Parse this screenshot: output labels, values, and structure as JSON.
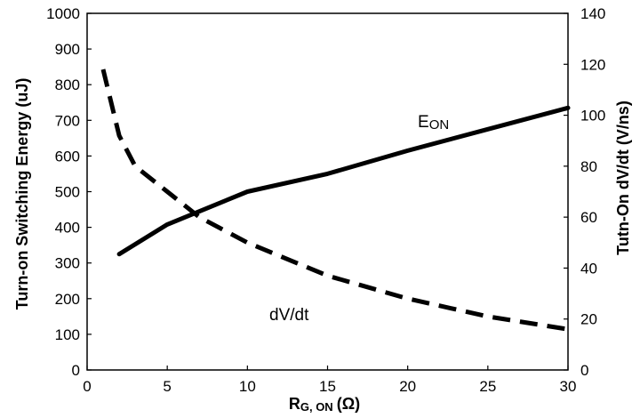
{
  "chart_data": {
    "type": "line",
    "xlabel": "R",
    "xlabel_sub": "G, ON",
    "xlabel_unit": "(Ω)",
    "ylabel_left": "Turn-on Switching Energy  (uJ)",
    "ylabel_right": "Tutn-On dV/dt  (V/ns)",
    "xlim": [
      0,
      30
    ],
    "ylim_left": [
      0,
      1000
    ],
    "ylim_right": [
      0,
      140
    ],
    "x_ticks": [
      "0",
      "5",
      "10",
      "15",
      "20",
      "25",
      "30"
    ],
    "y_left_ticks": [
      "0",
      "100",
      "200",
      "300",
      "400",
      "500",
      "600",
      "700",
      "800",
      "900",
      "1000"
    ],
    "y_right_ticks": [
      "0",
      "20",
      "40",
      "60",
      "80",
      "100",
      "120",
      "140"
    ],
    "grid": false,
    "series": [
      {
        "name": "E",
        "name_sub": "ON",
        "axis": "left",
        "style": "solid",
        "x": [
          2,
          5,
          10,
          15,
          20,
          25,
          30
        ],
        "y": [
          325,
          408,
          500,
          550,
          615,
          675,
          735
        ]
      },
      {
        "name": "dV/dt",
        "axis": "right",
        "style": "dashed",
        "x": [
          1,
          2,
          3,
          5,
          7,
          10,
          15,
          20,
          25,
          30
        ],
        "y": [
          118,
          92,
          80,
          70,
          60,
          50,
          37,
          28,
          21,
          16
        ]
      }
    ]
  }
}
